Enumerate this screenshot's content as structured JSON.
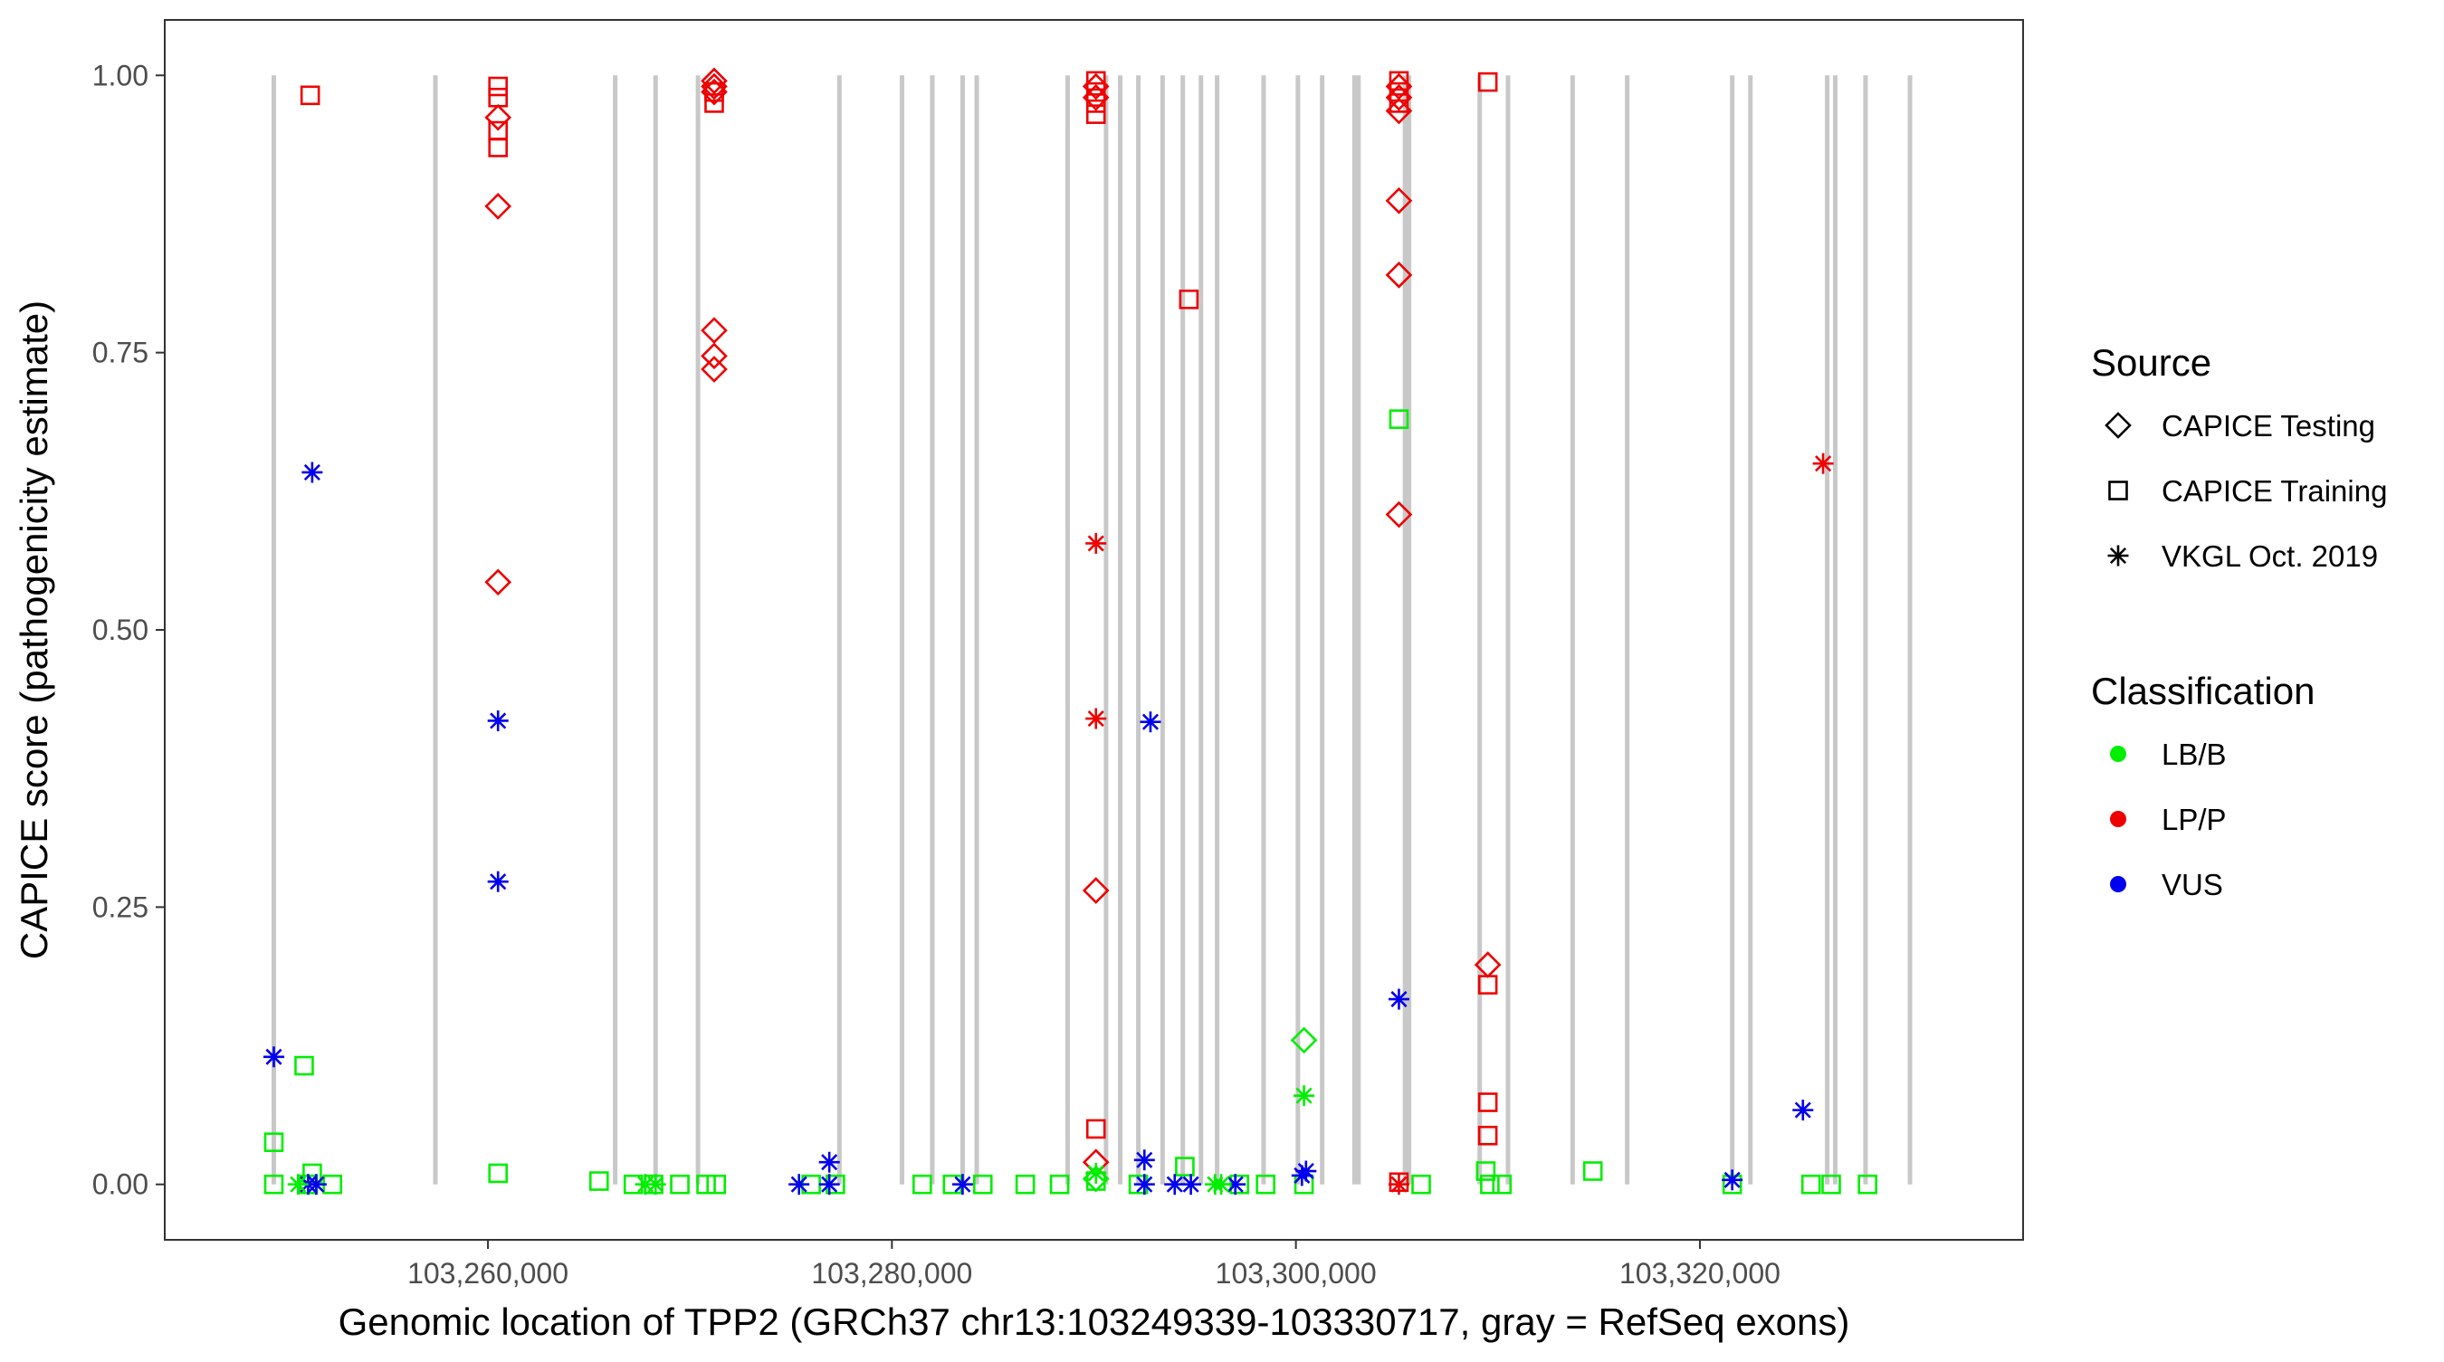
{
  "chart_data": {
    "type": "scatter",
    "xlabel": "Genomic location of TPP2 (GRCh37 chr13:103249339-103330717, gray = RefSeq exons)",
    "ylabel": "CAPICE score (pathogenicity estimate)",
    "xlim": [
      103244000,
      103336000
    ],
    "ylim": [
      -0.05,
      1.05
    ],
    "x_ticks": [
      {
        "value": 103260000,
        "label": "103,260,000"
      },
      {
        "value": 103280000,
        "label": "103,280,000"
      },
      {
        "value": 103300000,
        "label": "103,300,000"
      },
      {
        "value": 103320000,
        "label": "103,320,000"
      }
    ],
    "y_ticks": [
      {
        "value": 0,
        "label": "0.00"
      },
      {
        "value": 0.25,
        "label": "0.25"
      },
      {
        "value": 0.5,
        "label": "0.50"
      },
      {
        "value": 0.75,
        "label": "0.75"
      },
      {
        "value": 1,
        "label": "1.00"
      }
    ],
    "grid": false,
    "exons": [
      103249400,
      103257400,
      103266300,
      103268300,
      103270400,
      103277400,
      103280500,
      103282000,
      103283500,
      103284200,
      103288700,
      103290600,
      103291300,
      103292200,
      103293400,
      103294400,
      103295300,
      103296100,
      103298400,
      103300100,
      103301300,
      103302900,
      103303100,
      103305400,
      103305600,
      103309100,
      103310500,
      103313700,
      103316400,
      103321600,
      103322500,
      103326300,
      103326700,
      103328200,
      103330400
    ],
    "exon_color": "#c8c8c8",
    "legend": {
      "position": "right",
      "source_title": "Source",
      "source_items": [
        {
          "label": "CAPICE Testing",
          "shape": "diamond"
        },
        {
          "label": "CAPICE Training",
          "shape": "square"
        },
        {
          "label": "VKGL Oct. 2019",
          "shape": "asterisk"
        }
      ],
      "class_title": "Classification",
      "class_items": [
        {
          "label": "LB/B",
          "color": "#00ee00"
        },
        {
          "label": "LP/P",
          "color": "#ee0000"
        },
        {
          "label": "VUS",
          "color": "#0000ee"
        }
      ]
    },
    "series": [
      {
        "source": "CAPICE Testing",
        "class": "LP/P",
        "points": [
          [
            103260500,
            0.962
          ],
          [
            103260500,
            0.882
          ],
          [
            103260500,
            0.543
          ],
          [
            103271200,
            0.995
          ],
          [
            103271200,
            0.99
          ],
          [
            103271200,
            0.985
          ],
          [
            103271200,
            0.77
          ],
          [
            103271200,
            0.747
          ],
          [
            103271200,
            0.735
          ],
          [
            103290100,
            0.99
          ],
          [
            103290100,
            0.98
          ],
          [
            103290100,
            0.265
          ],
          [
            103290100,
            0.02
          ],
          [
            103305100,
            0.99
          ],
          [
            103305100,
            0.98
          ],
          [
            103305100,
            0.968
          ],
          [
            103305100,
            0.887
          ],
          [
            103305100,
            0.82
          ],
          [
            103305100,
            0.604
          ],
          [
            103309500,
            0.198
          ]
        ]
      },
      {
        "source": "CAPICE Testing",
        "class": "LB/B",
        "points": [
          [
            103300400,
            0.13
          ],
          [
            103290100,
            0.005
          ]
        ]
      },
      {
        "source": "CAPICE Training",
        "class": "LP/P",
        "points": [
          [
            103251200,
            0.982
          ],
          [
            103260500,
            0.99
          ],
          [
            103260500,
            0.98
          ],
          [
            103260500,
            0.95
          ],
          [
            103260500,
            0.935
          ],
          [
            103271200,
            0.985
          ],
          [
            103271200,
            0.975
          ],
          [
            103290100,
            0.995
          ],
          [
            103290100,
            0.985
          ],
          [
            103290100,
            0.975
          ],
          [
            103290100,
            0.965
          ],
          [
            103290100,
            0.05
          ],
          [
            103294700,
            0.798
          ],
          [
            103305100,
            0.995
          ],
          [
            103305100,
            0.985
          ],
          [
            103305100,
            0.975
          ],
          [
            103305100,
            0.002
          ],
          [
            103309500,
            0.994
          ],
          [
            103309500,
            0.18
          ],
          [
            103309500,
            0.074
          ],
          [
            103309500,
            0.044
          ]
        ]
      },
      {
        "source": "CAPICE Training",
        "class": "LB/B",
        "points": [
          [
            103249400,
            0.038
          ],
          [
            103249400,
            0.0
          ],
          [
            103250900,
            0.107
          ],
          [
            103251100,
            0.0
          ],
          [
            103251300,
            0.01
          ],
          [
            103252300,
            0.0
          ],
          [
            103260500,
            0.01
          ],
          [
            103265500,
            0.003
          ],
          [
            103267200,
            0.0
          ],
          [
            103268200,
            0.0
          ],
          [
            103269500,
            0.0
          ],
          [
            103270800,
            0.0
          ],
          [
            103271300,
            0.0
          ],
          [
            103276000,
            0.0
          ],
          [
            103277200,
            0.0
          ],
          [
            103281500,
            0.0
          ],
          [
            103283000,
            0.0
          ],
          [
            103284500,
            0.0
          ],
          [
            103286600,
            0.0
          ],
          [
            103288300,
            0.0
          ],
          [
            103290100,
            0.003
          ],
          [
            103292200,
            0.0
          ],
          [
            103294500,
            0.016
          ],
          [
            103297200,
            0.0
          ],
          [
            103298500,
            0.0
          ],
          [
            103300400,
            0.0
          ],
          [
            103305100,
            0.69
          ],
          [
            103306200,
            0.0
          ],
          [
            103309400,
            0.012
          ],
          [
            103309600,
            0.0
          ],
          [
            103310200,
            0.0
          ],
          [
            103314700,
            0.012
          ],
          [
            103321600,
            0.0
          ],
          [
            103325500,
            0.0
          ],
          [
            103326500,
            0.0
          ],
          [
            103328300,
            0.0
          ]
        ]
      },
      {
        "source": "VKGL Oct. 2019",
        "class": "VUS",
        "points": [
          [
            103249400,
            0.115
          ],
          [
            103251300,
            0.642
          ],
          [
            103251100,
            0.0
          ],
          [
            103251500,
            0.0
          ],
          [
            103260500,
            0.418
          ],
          [
            103260500,
            0.273
          ],
          [
            103275400,
            0.0
          ],
          [
            103276900,
            0.02
          ],
          [
            103276900,
            0.0
          ],
          [
            103283500,
            0.0
          ],
          [
            103292800,
            0.417
          ],
          [
            103292500,
            0.022
          ],
          [
            103292500,
            0.0
          ],
          [
            103294000,
            0.0
          ],
          [
            103294800,
            0.0
          ],
          [
            103297000,
            0.0
          ],
          [
            103300500,
            0.012
          ],
          [
            103300300,
            0.008
          ],
          [
            103305100,
            0.167
          ],
          [
            103321600,
            0.004
          ],
          [
            103325100,
            0.067
          ]
        ]
      },
      {
        "source": "VKGL Oct. 2019",
        "class": "LP/P",
        "points": [
          [
            103290100,
            0.578
          ],
          [
            103290100,
            0.42
          ],
          [
            103305100,
            0.0
          ],
          [
            103326100,
            0.65
          ]
        ]
      },
      {
        "source": "VKGL Oct. 2019",
        "class": "LB/B",
        "points": [
          [
            103250600,
            0.0
          ],
          [
            103267800,
            0.0
          ],
          [
            103268300,
            0.0
          ],
          [
            103290100,
            0.01
          ],
          [
            103296000,
            0.0
          ],
          [
            103296300,
            0.0
          ],
          [
            103300400,
            0.08
          ]
        ]
      }
    ]
  }
}
